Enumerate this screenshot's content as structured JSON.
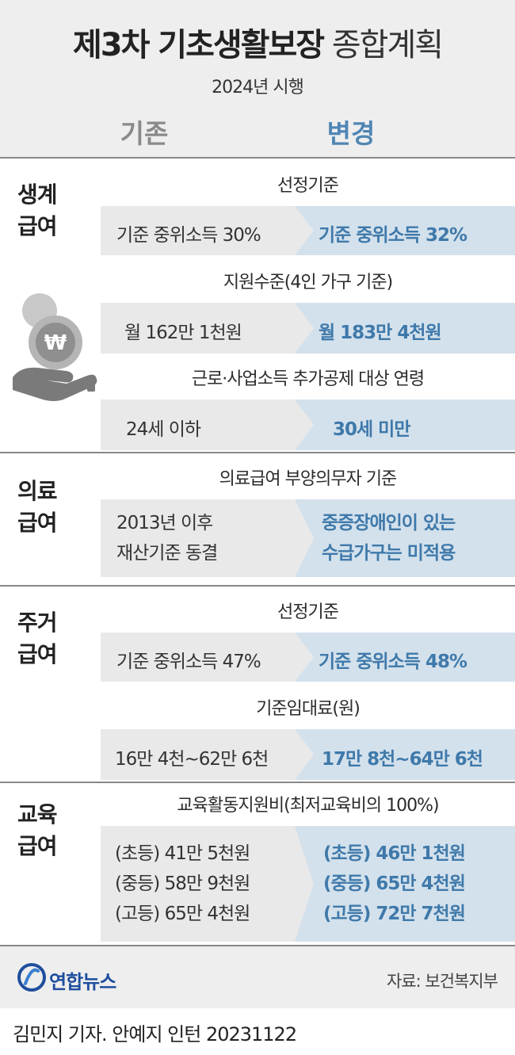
{
  "header": {
    "title_bold": "제3차 기초생활보장",
    "title_light": "종합계획",
    "subtitle": "2024년 시행",
    "col_old": "기존",
    "col_new": "변경"
  },
  "sections": {
    "living": {
      "name_line1": "생계",
      "name_line2": "급여",
      "crit1": "선정기준",
      "old1": "기준 중위소득 30%",
      "new1": "기준 중위소득 32%",
      "crit2": "지원수준(4인 가구 기준)",
      "old2": "월 162만 1천원",
      "new2": "월 183만 4천원",
      "crit3": "근로·사업소득 추가공제 대상 연령",
      "old3": "24세 이하",
      "new3": "30세 미만"
    },
    "medical": {
      "name_line1": "의료",
      "name_line2": "급여",
      "crit1": "의료급여 부양의무자 기준",
      "old1_line1": "2013년 이후",
      "old1_line2": "재산기준 동결",
      "new1_line1": "중증장애인이 있는",
      "new1_line2": "수급가구는 미적용"
    },
    "housing": {
      "name_line1": "주거",
      "name_line2": "급여",
      "crit1": "선정기준",
      "old1": "기준 중위소득 47%",
      "new1": "기준 중위소득 48%",
      "crit2": "기준임대료(원)",
      "old2": "16만 4천~62만 6천",
      "new2": "17만 8천~64만 6천"
    },
    "education": {
      "name_line1": "교육",
      "name_line2": "급여",
      "crit1": "교육활동지원비(최저교육비의 100%)",
      "old_lines": [
        "(초등) 41만 5천원",
        "(중등) 58만 9천원",
        "(고등) 65만 4천원"
      ],
      "new_lines": [
        "(초등) 46만 1천원",
        "(중등) 65만 4천원",
        "(고등) 72만 7천원"
      ]
    }
  },
  "footer": {
    "logo": "연합뉴스",
    "source": "자료: 보건복지부"
  },
  "byline": "김민지 기자. 안예지 인턴  20231122",
  "icons": {
    "coin": "won-coin-icon",
    "hand": "hand-icon",
    "logo": "yonhap-logo-icon"
  },
  "colors": {
    "old_bg": "#e9e9e9",
    "new_bg": "#d3e1ec",
    "new_text": "#3f79aa",
    "header_bg": "#eeeeee"
  }
}
